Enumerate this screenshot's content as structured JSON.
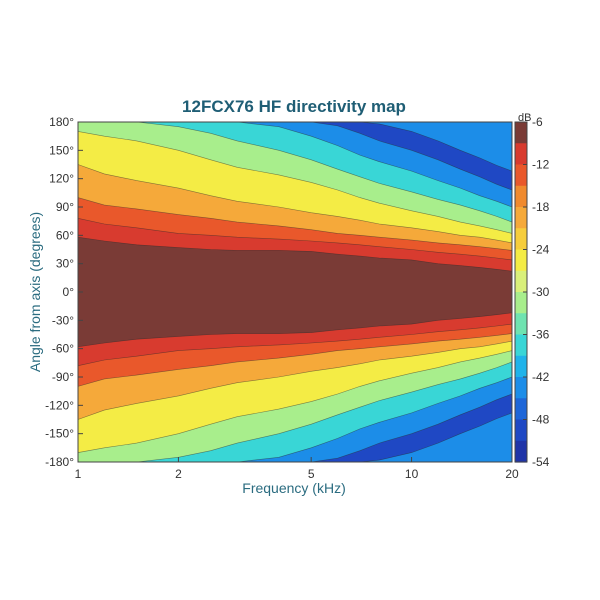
{
  "chart_data": {
    "type": "heatmap",
    "title": "12FCX76 HF directivity map",
    "xlabel": "Frequency (kHz)",
    "ylabel": "Angle from axis (degrees)",
    "x_scale": "log",
    "xlim": [
      1,
      20
    ],
    "ylim": [
      -180,
      180
    ],
    "x_ticks": [
      1,
      2,
      5,
      10,
      20
    ],
    "x_tick_labels": [
      "1",
      "2",
      "5",
      "10",
      "20"
    ],
    "y_ticks": [
      180,
      150,
      120,
      90,
      60,
      30,
      0,
      -30,
      -60,
      -90,
      -120,
      -150,
      -180
    ],
    "y_tick_labels": [
      "180°",
      "150°",
      "120°",
      "90°",
      "60°",
      "30°",
      "0°",
      "-30°",
      "-60°",
      "-90°",
      "-120°",
      "-150°",
      "-180°"
    ],
    "colorbar": {
      "unit": "dB",
      "range": [
        -54,
        -6
      ],
      "ticks": [
        -6,
        -12,
        -18,
        -24,
        -30,
        -36,
        -42,
        -48,
        -54
      ],
      "tick_labels": [
        "-6",
        "-12",
        "-18",
        "-24",
        "-30",
        "-36",
        "-42",
        "-48",
        "-54"
      ]
    },
    "levels_db": [
      -6,
      -9,
      -12,
      -15,
      -18,
      -21,
      -24,
      -27,
      -30,
      -33,
      -36,
      -39,
      -42,
      -45,
      -48,
      -51,
      -54
    ],
    "level_colors": [
      "#7a3b36",
      "#d83b2f",
      "#e9582b",
      "#f08a2e",
      "#f5a93a",
      "#f6cd3c",
      "#f4ec45",
      "#d9f07a",
      "#a8ee8c",
      "#6fe3b0",
      "#39d6d6",
      "#1fb3ea",
      "#1c8de8",
      "#1e66d8",
      "#1f48c4",
      "#1f34a8"
    ],
    "contour_boundaries": {
      "frequency_khz": [
        1,
        1.2,
        1.5,
        2,
        2.5,
        3,
        4,
        5,
        6,
        7,
        8,
        10,
        12,
        14,
        16,
        18,
        20
      ],
      "angle_at_level_db": [
        {
          "level": -6,
          "angle_deg": [
            58,
            54,
            50,
            47,
            45,
            44,
            44,
            43,
            40,
            38,
            36,
            34,
            30,
            28,
            26,
            24,
            22
          ]
        },
        {
          "level": -9,
          "angle_deg": [
            78,
            72,
            68,
            62,
            60,
            58,
            56,
            54,
            52,
            50,
            48,
            45,
            42,
            40,
            38,
            36,
            34
          ]
        },
        {
          "level": -12,
          "angle_deg": [
            100,
            92,
            88,
            82,
            78,
            74,
            70,
            66,
            62,
            60,
            58,
            55,
            52,
            50,
            48,
            46,
            44
          ]
        },
        {
          "level": -18,
          "angle_deg": [
            135,
            125,
            118,
            110,
            102,
            96,
            90,
            84,
            80,
            76,
            72,
            68,
            64,
            60,
            58,
            55,
            52
          ]
        },
        {
          "level": -24,
          "angle_deg": [
            170,
            165,
            160,
            150,
            140,
            132,
            124,
            116,
            108,
            100,
            94,
            86,
            80,
            74,
            70,
            66,
            62
          ]
        },
        {
          "level": -30,
          "angle_deg": [
            180,
            180,
            180,
            175,
            168,
            160,
            150,
            140,
            130,
            122,
            115,
            106,
            98,
            92,
            86,
            80,
            74
          ]
        },
        {
          "level": -36,
          "angle_deg": [
            180,
            180,
            180,
            180,
            180,
            180,
            175,
            165,
            155,
            145,
            138,
            128,
            118,
            110,
            102,
            96,
            90
          ]
        },
        {
          "level": -42,
          "angle_deg": [
            180,
            180,
            180,
            180,
            180,
            180,
            180,
            180,
            176,
            168,
            160,
            150,
            140,
            130,
            122,
            114,
            108
          ]
        },
        {
          "level": -48,
          "angle_deg": [
            180,
            180,
            180,
            180,
            180,
            180,
            180,
            180,
            180,
            180,
            178,
            170,
            160,
            150,
            142,
            134,
            128
          ]
        }
      ]
    },
    "grid": false,
    "legend": "colorbar-right"
  }
}
